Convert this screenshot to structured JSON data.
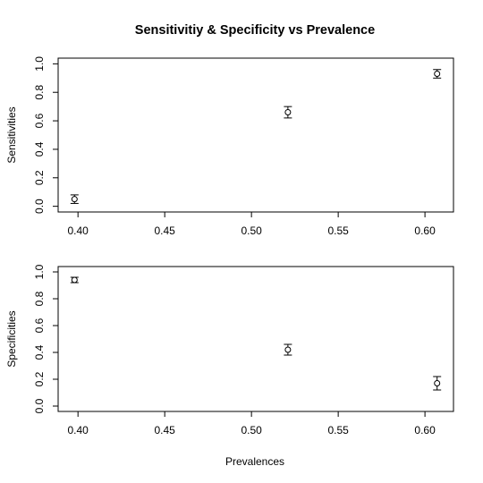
{
  "chart_data": {
    "title": "Sensitivitiy & Specificity vs Prevalence",
    "xlabel": "Prevalences",
    "panels": [
      {
        "type": "scatter",
        "ylabel": "Sensitivities",
        "xlim": [
          0.397,
          0.608
        ],
        "ylim": [
          0.0,
          1.0
        ],
        "xticks": [
          0.4,
          0.45,
          0.5,
          0.55,
          0.6
        ],
        "xtick_labels": [
          "0.40",
          "0.45",
          "0.50",
          "0.55",
          "0.60"
        ],
        "yticks": [
          0.0,
          0.2,
          0.4,
          0.6,
          0.8,
          1.0
        ],
        "ytick_labels": [
          "0.0",
          "0.2",
          "0.4",
          "0.6",
          "0.8",
          "1.0"
        ],
        "points": [
          {
            "x": 0.398,
            "y": 0.05,
            "lo": 0.02,
            "hi": 0.08
          },
          {
            "x": 0.521,
            "y": 0.66,
            "lo": 0.62,
            "hi": 0.7
          },
          {
            "x": 0.607,
            "y": 0.93,
            "lo": 0.9,
            "hi": 0.96
          }
        ]
      },
      {
        "type": "scatter",
        "ylabel": "Specificities",
        "xlim": [
          0.397,
          0.608
        ],
        "ylim": [
          0.0,
          1.0
        ],
        "xticks": [
          0.4,
          0.45,
          0.5,
          0.55,
          0.6
        ],
        "xtick_labels": [
          "0.40",
          "0.45",
          "0.50",
          "0.55",
          "0.60"
        ],
        "yticks": [
          0.0,
          0.2,
          0.4,
          0.6,
          0.8,
          1.0
        ],
        "ytick_labels": [
          "0.0",
          "0.2",
          "0.4",
          "0.6",
          "0.8",
          "1.0"
        ],
        "points": [
          {
            "x": 0.398,
            "y": 0.94,
            "lo": 0.92,
            "hi": 0.96
          },
          {
            "x": 0.521,
            "y": 0.42,
            "lo": 0.38,
            "hi": 0.46
          },
          {
            "x": 0.607,
            "y": 0.17,
            "lo": 0.12,
            "hi": 0.22
          }
        ]
      }
    ]
  }
}
